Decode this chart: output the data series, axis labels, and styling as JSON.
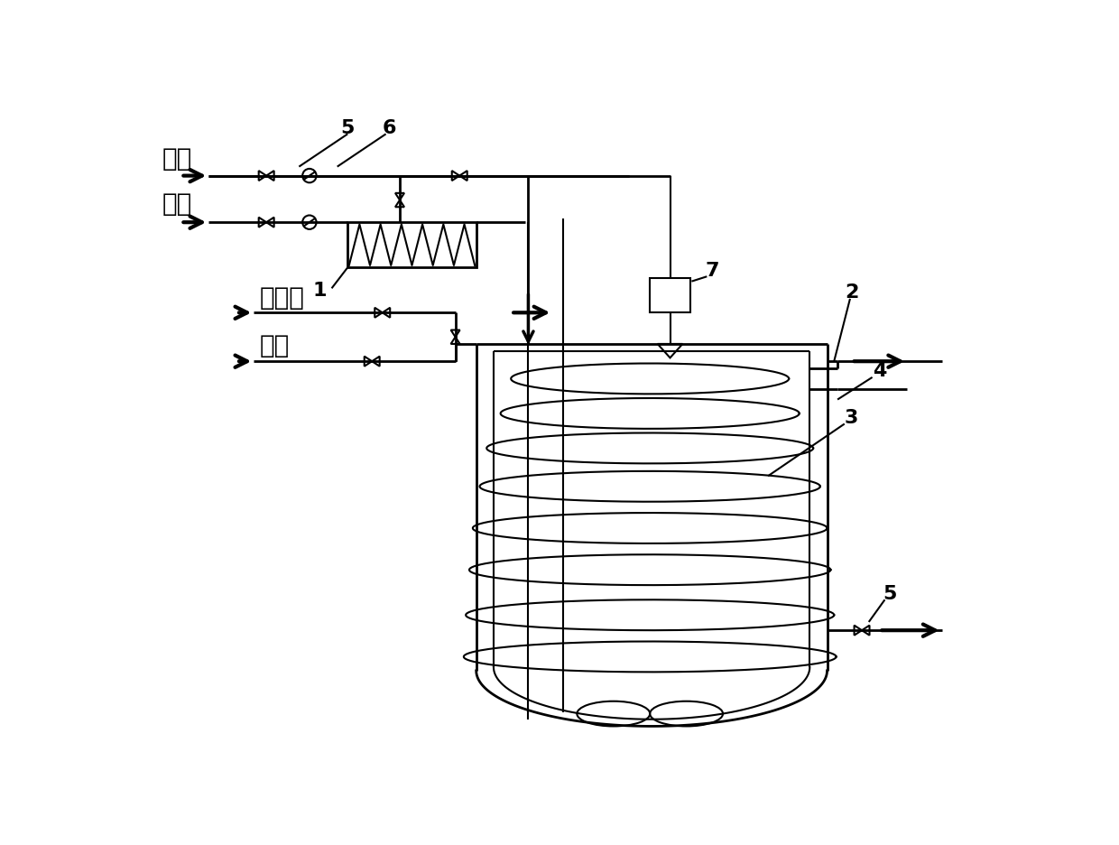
{
  "labels": {
    "jian_ye": "碱液",
    "ti_ye": "鑂液",
    "leng_que_shui": "冷却水",
    "zheng_qi": "蜢气",
    "num1": "1",
    "num2": "2",
    "num3": "3",
    "num4": "4",
    "num5a": "5",
    "num5b": "5",
    "num6": "6",
    "num7": "7"
  },
  "bg_color": "#ffffff",
  "lw_main": 2.0,
  "lw_thin": 1.5
}
